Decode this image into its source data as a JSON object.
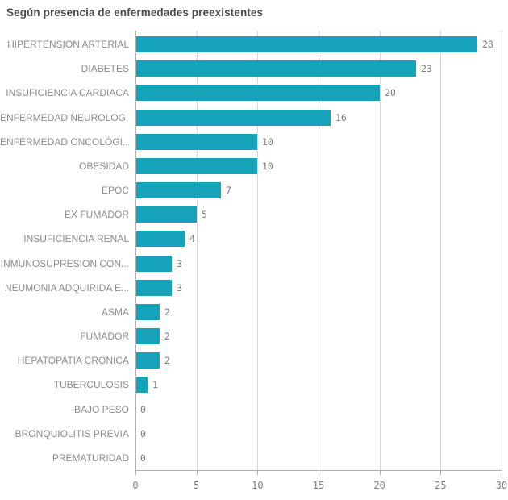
{
  "title": "Según presencia de enfermedades preexistentes",
  "chart_data": {
    "type": "bar",
    "orientation": "horizontal",
    "title": "Según presencia de enfermedades preexistentes",
    "categories": [
      "HIPERTENSION ARTERIAL",
      "DIABETES",
      "INSUFICIENCIA CARDIACA",
      "ENFERMEDAD NEUROLOG...",
      "ENFERMEDAD ONCOLÓGI...",
      "OBESIDAD",
      "EPOC",
      "EX FUMADOR",
      "INSUFICIENCIA RENAL",
      "INMUNOSUPRESION CON...",
      "NEUMONIA ADQUIRIDA E...",
      "ASMA",
      "FUMADOR",
      "HEPATOPATIA CRONICA",
      "TUBERCULOSIS",
      "BAJO PESO",
      "BRONQUIOLITIS PREVIA",
      "PREMATURIDAD"
    ],
    "values": [
      28,
      23,
      20,
      16,
      10,
      10,
      7,
      5,
      4,
      3,
      3,
      2,
      2,
      2,
      1,
      0,
      0,
      0
    ],
    "x_ticks": [
      0,
      5,
      10,
      15,
      20,
      25,
      30
    ],
    "xlim": [
      0,
      30
    ],
    "grid": true,
    "value_labels_shown": true,
    "bar_color": "#14a3b8",
    "label_color": "#8c8c8c",
    "value_label_color": "#7d7d7d",
    "title_color": "#4c4c4c"
  }
}
